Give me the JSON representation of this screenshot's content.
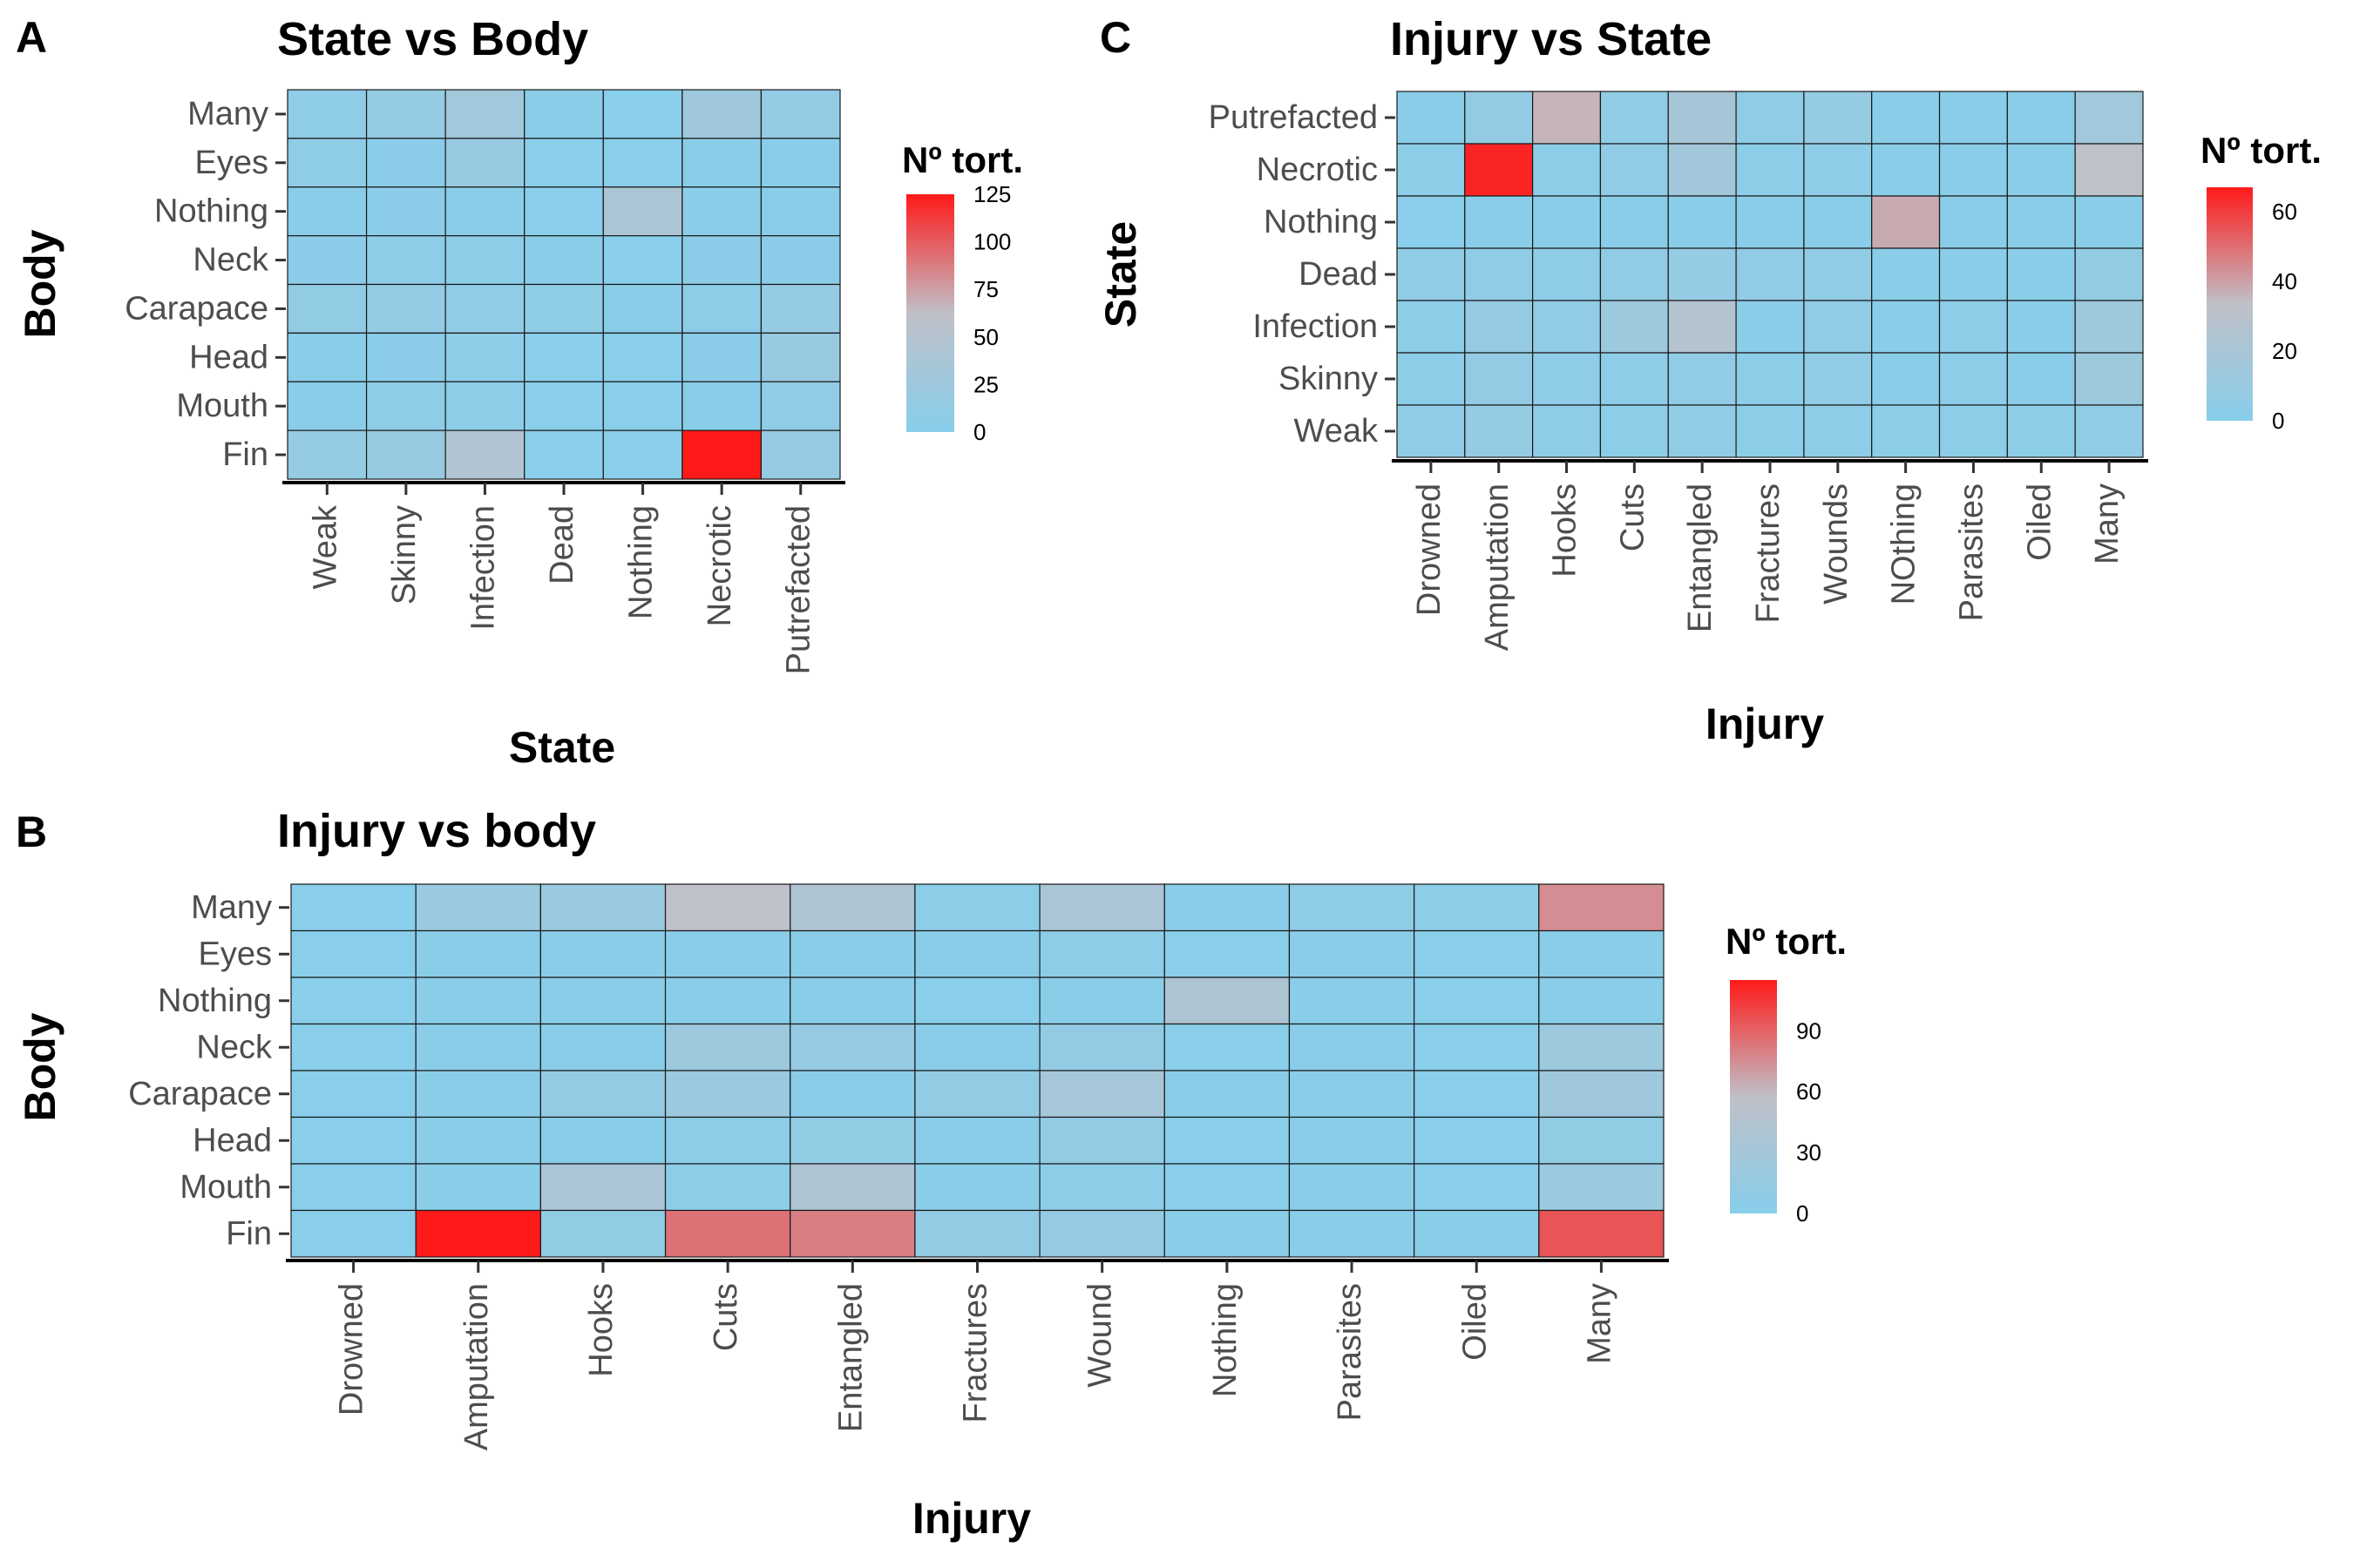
{
  "chart_data": [
    {
      "panel": "A",
      "type": "heatmap",
      "title": "State vs Body",
      "xlabel": "State",
      "ylabel": "Body",
      "x_categories": [
        "Weak",
        "Skinny",
        "Infection",
        "Dead",
        "Nothing",
        "Necrotic",
        "Putrefacted"
      ],
      "y_categories": [
        "Many",
        "Eyes",
        "Nothing",
        "Neck",
        "Carapace",
        "Head",
        "Mouth",
        "Fin"
      ],
      "values": [
        [
          8,
          15,
          28,
          3,
          2,
          26,
          13
        ],
        [
          9,
          4,
          18,
          2,
          2,
          3,
          3
        ],
        [
          3,
          4,
          3,
          2,
          40,
          3,
          3
        ],
        [
          4,
          5,
          6,
          3,
          2,
          4,
          4
        ],
        [
          12,
          13,
          10,
          9,
          3,
          6,
          15
        ],
        [
          3,
          4,
          5,
          2,
          2,
          4,
          18
        ],
        [
          3,
          8,
          5,
          2,
          2,
          3,
          10
        ],
        [
          15,
          17,
          47,
          2,
          2,
          125,
          16
        ]
      ],
      "legend": {
        "title": "Nº tort.",
        "min": 0,
        "max": 125,
        "ticks": [
          0,
          25,
          50,
          75,
          100,
          125
        ],
        "low_color": "#87CEEB",
        "mid_color": "#C0C0C8",
        "high_color": "#FF1A1A"
      }
    },
    {
      "panel": "C",
      "type": "heatmap",
      "title": "Injury vs State",
      "xlabel": "Injury",
      "ylabel": "State",
      "x_categories": [
        "Drowned",
        "Amputation",
        "Hooks",
        "Cuts",
        "Entangled",
        "Fractures",
        "Wounds",
        "NOthing",
        "Parasites",
        "Oiled",
        "Many"
      ],
      "y_categories": [
        "Putrefacted",
        "Necrotic",
        "Nothing",
        "Dead",
        "Infection",
        "Skinny",
        "Weak"
      ],
      "values": [
        [
          2,
          7,
          36,
          5,
          18,
          5,
          8,
          2,
          2,
          2,
          15
        ],
        [
          3,
          65,
          3,
          6,
          16,
          3,
          4,
          2,
          2,
          2,
          32
        ],
        [
          1,
          2,
          2,
          2,
          2,
          2,
          2,
          38,
          2,
          2,
          2
        ],
        [
          5,
          5,
          4,
          6,
          8,
          6,
          6,
          2,
          2,
          2,
          7
        ],
        [
          3,
          9,
          6,
          13,
          26,
          2,
          6,
          2,
          3,
          2,
          13
        ],
        [
          3,
          7,
          4,
          4,
          6,
          3,
          6,
          2,
          3,
          2,
          13
        ],
        [
          5,
          8,
          4,
          3,
          5,
          3,
          4,
          3,
          3,
          3,
          6
        ]
      ],
      "legend": {
        "title": "Nº tort.",
        "min": 0,
        "max": 67,
        "ticks": [
          0,
          20,
          40,
          60
        ],
        "low_color": "#87CEEB",
        "mid_color": "#C0C0C8",
        "high_color": "#FF1A1A"
      }
    },
    {
      "panel": "B",
      "type": "heatmap",
      "title": "Injury vs body",
      "xlabel": "Injury",
      "ylabel": "Body",
      "x_categories": [
        "Drowned",
        "Amputation",
        "Hooks",
        "Cuts",
        "Entangled",
        "Fractures",
        "Wound",
        "Nothing",
        "Parasites",
        "Oiled",
        "Many"
      ],
      "y_categories": [
        "Many",
        "Eyes",
        "Nothing",
        "Neck",
        "Carapace",
        "Head",
        "Mouth",
        "Fin"
      ],
      "values": [
        [
          2,
          18,
          18,
          55,
          40,
          5,
          35,
          3,
          8,
          5,
          75
        ],
        [
          2,
          3,
          3,
          3,
          3,
          3,
          6,
          2,
          3,
          2,
          3
        ],
        [
          2,
          3,
          3,
          3,
          3,
          2,
          3,
          40,
          3,
          2,
          3
        ],
        [
          2,
          3,
          3,
          22,
          15,
          3,
          12,
          2,
          3,
          2,
          22
        ],
        [
          2,
          3,
          12,
          20,
          3,
          12,
          30,
          3,
          3,
          2,
          25
        ],
        [
          2,
          3,
          3,
          5,
          10,
          3,
          12,
          2,
          3,
          2,
          10
        ],
        [
          2,
          3,
          35,
          5,
          40,
          3,
          5,
          2,
          3,
          2,
          20
        ],
        [
          2,
          115,
          10,
          85,
          80,
          12,
          15,
          3,
          3,
          3,
          95
        ]
      ],
      "legend": {
        "title": "Nº tort.",
        "min": 0,
        "max": 115,
        "ticks": [
          0,
          30,
          60,
          90
        ],
        "low_color": "#87CEEB",
        "mid_color": "#C0C0C8",
        "high_color": "#FF1A1A"
      }
    }
  ]
}
